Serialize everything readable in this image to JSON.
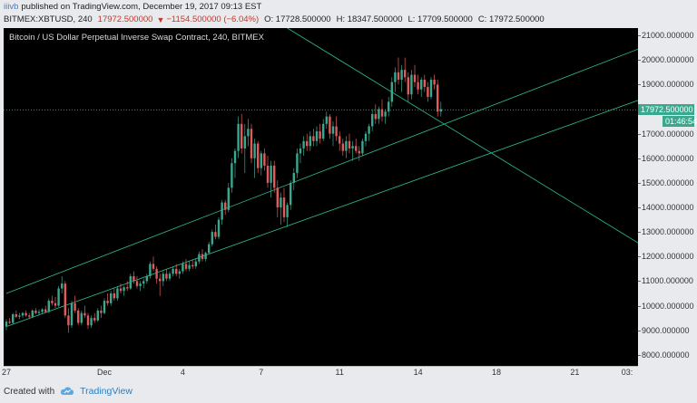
{
  "header": {
    "user": "iiivb",
    "published": "published on TradingView.com, December 19, 2017 09:13 EST"
  },
  "ohlc": {
    "symbol": "BITMEX:XBTUSD, 240",
    "last": "17972.500000",
    "change_arrow": "▼",
    "change": "−1154.500000 (−6.04%)",
    "o": "O: 17728.500000",
    "h": "H: 18347.500000",
    "l": "L: 17709.500000",
    "c": "C: 17972.500000"
  },
  "footer": {
    "created_with": "Created with",
    "brand": "TradingView"
  },
  "colors": {
    "up": "#3aa88e",
    "down": "#e05c5c",
    "channel": "#2cbf96",
    "background": "#000000"
  },
  "chart_data": {
    "type": "candlestick",
    "title": "Bitcoin / US Dollar Perpetual Inverse Swap Contract, 240, BITMEX",
    "ylim": [
      7550,
      21300
    ],
    "y_ticks": [
      "21000.000000",
      "20000.000000",
      "19000.000000",
      "18000.000000",
      "17000.000000",
      "16000.000000",
      "15000.000000",
      "14000.000000",
      "13000.000000",
      "12000.000000",
      "11000.000000",
      "10000.000000",
      "9000.000000",
      "8000.000000"
    ],
    "y_tick_values": [
      21000,
      20000,
      19000,
      18000,
      17000,
      16000,
      15000,
      14000,
      13000,
      12000,
      11000,
      10000,
      9000,
      8000
    ],
    "x_ticks": [
      "27",
      "Dec",
      "4",
      "7",
      "11",
      "14",
      "18",
      "21",
      "03:"
    ],
    "x_tick_bars": [
      0,
      30,
      54,
      78,
      102,
      126,
      150,
      174,
      190
    ],
    "last_price_label": "17972.500000",
    "countdown_label": "01:46:54",
    "last_price": 17972.5,
    "channel_lines": [
      {
        "name": "",
        "from_bar": 0,
        "from_price": 10500,
        "to_bar": 210,
        "to_price": 21300
      },
      {
        "name": "",
        "from_bar": 0,
        "from_price": 9150,
        "to_bar": 210,
        "to_price": 19150
      },
      {
        "name": "",
        "from_bar": 86,
        "from_price": 21300,
        "to_bar": 210,
        "to_price": 11200
      }
    ],
    "candles": [
      [
        9150,
        9450,
        9000,
        9350
      ],
      [
        9350,
        9500,
        9250,
        9300
      ],
      [
        9300,
        9700,
        9250,
        9650
      ],
      [
        9650,
        9800,
        9500,
        9550
      ],
      [
        9550,
        9700,
        9450,
        9600
      ],
      [
        9600,
        9750,
        9500,
        9700
      ],
      [
        9700,
        9800,
        9550,
        9600
      ],
      [
        9600,
        9700,
        9450,
        9550
      ],
      [
        9550,
        9850,
        9500,
        9800
      ],
      [
        9800,
        9900,
        9650,
        9700
      ],
      [
        9700,
        9850,
        9600,
        9750
      ],
      [
        9750,
        9900,
        9650,
        9850
      ],
      [
        9850,
        10000,
        9700,
        9750
      ],
      [
        9750,
        10300,
        9700,
        10200
      ],
      [
        10200,
        10400,
        10000,
        10100
      ],
      [
        10100,
        10350,
        9900,
        10000
      ],
      [
        10000,
        10800,
        9950,
        10700
      ],
      [
        10700,
        11200,
        10500,
        10900
      ],
      [
        10900,
        11000,
        9500,
        9600
      ],
      [
        9600,
        9900,
        8900,
        9200
      ],
      [
        9200,
        10200,
        9100,
        10100
      ],
      [
        10100,
        10400,
        9700,
        9800
      ],
      [
        9800,
        9900,
        9200,
        9300
      ],
      [
        9300,
        9800,
        9200,
        9700
      ],
      [
        9700,
        10000,
        9500,
        9600
      ],
      [
        9600,
        9700,
        9050,
        9200
      ],
      [
        9200,
        9600,
        9100,
        9500
      ],
      [
        9500,
        9700,
        9300,
        9400
      ],
      [
        9400,
        9900,
        9350,
        9800
      ],
      [
        9800,
        10000,
        9500,
        9700
      ],
      [
        9700,
        10300,
        9650,
        10200
      ],
      [
        10200,
        10500,
        10000,
        10100
      ],
      [
        10100,
        10600,
        10000,
        10500
      ],
      [
        10500,
        10700,
        10200,
        10300
      ],
      [
        10300,
        10800,
        10200,
        10700
      ],
      [
        10700,
        10900,
        10500,
        10600
      ],
      [
        10600,
        10800,
        10400,
        10750
      ],
      [
        10750,
        11000,
        10600,
        10700
      ],
      [
        10700,
        11300,
        10650,
        11200
      ],
      [
        11200,
        11400,
        10900,
        11000
      ],
      [
        11000,
        11200,
        10700,
        10800
      ],
      [
        10800,
        11000,
        10600,
        10900
      ],
      [
        10900,
        11100,
        10700,
        11000
      ],
      [
        11000,
        11300,
        10900,
        11200
      ],
      [
        11200,
        11800,
        11100,
        11700
      ],
      [
        11700,
        12000,
        11400,
        11500
      ],
      [
        11500,
        11600,
        10900,
        11100
      ],
      [
        11100,
        11300,
        10400,
        11000
      ],
      [
        11000,
        11400,
        10800,
        11300
      ],
      [
        11300,
        11500,
        11000,
        11100
      ],
      [
        11100,
        11400,
        11000,
        11300
      ],
      [
        11300,
        11600,
        11200,
        11500
      ],
      [
        11500,
        11700,
        11200,
        11300
      ],
      [
        11300,
        11500,
        11100,
        11400
      ],
      [
        11400,
        11800,
        11300,
        11700
      ],
      [
        11700,
        11900,
        11400,
        11500
      ],
      [
        11500,
        11800,
        11400,
        11650
      ],
      [
        11650,
        11850,
        11500,
        11600
      ],
      [
        11600,
        11900,
        11500,
        11800
      ],
      [
        11800,
        12200,
        11700,
        12100
      ],
      [
        12100,
        12300,
        11800,
        11900
      ],
      [
        11900,
        12200,
        11800,
        12150
      ],
      [
        12150,
        12600,
        12100,
        12500
      ],
      [
        12500,
        13100,
        12400,
        13000
      ],
      [
        13000,
        13300,
        12700,
        12800
      ],
      [
        12800,
        13600,
        12700,
        13500
      ],
      [
        13500,
        14300,
        13300,
        14200
      ],
      [
        14200,
        14300,
        13700,
        13900
      ],
      [
        13900,
        15000,
        13800,
        14800
      ],
      [
        14800,
        16000,
        14600,
        15800
      ],
      [
        15800,
        16400,
        15200,
        16300
      ],
      [
        16300,
        17700,
        16000,
        17400
      ],
      [
        17400,
        17800,
        16200,
        16400
      ],
      [
        16400,
        17400,
        15400,
        16900
      ],
      [
        16900,
        17600,
        16500,
        17200
      ],
      [
        17200,
        17400,
        15800,
        16000
      ],
      [
        16000,
        16800,
        15200,
        16600
      ],
      [
        16600,
        16700,
        15400,
        15600
      ],
      [
        15600,
        16300,
        15300,
        16200
      ],
      [
        16200,
        16400,
        15500,
        15700
      ],
      [
        15700,
        16100,
        14800,
        15000
      ],
      [
        15000,
        15900,
        14400,
        15700
      ],
      [
        15700,
        15900,
        14600,
        14800
      ],
      [
        14800,
        15100,
        13600,
        14000
      ],
      [
        14000,
        14600,
        13300,
        14400
      ],
      [
        14400,
        14800,
        13400,
        13600
      ],
      [
        13600,
        14200,
        13200,
        14100
      ],
      [
        14100,
        15100,
        13900,
        15000
      ],
      [
        15000,
        15600,
        14700,
        15400
      ],
      [
        15400,
        16400,
        15200,
        16200
      ],
      [
        16200,
        16600,
        15800,
        16400
      ],
      [
        16400,
        16900,
        16100,
        16700
      ],
      [
        16700,
        17000,
        16300,
        16500
      ],
      [
        16500,
        17100,
        16300,
        16900
      ],
      [
        16900,
        17200,
        16500,
        16700
      ],
      [
        16700,
        17300,
        16500,
        17100
      ],
      [
        17100,
        17400,
        16600,
        16800
      ],
      [
        16800,
        17600,
        16700,
        17400
      ],
      [
        17400,
        17900,
        17200,
        17700
      ],
      [
        17700,
        17800,
        16800,
        17000
      ],
      [
        17000,
        17500,
        16500,
        17300
      ],
      [
        17300,
        17700,
        16700,
        16900
      ],
      [
        16900,
        17100,
        16300,
        16600
      ],
      [
        16600,
        16800,
        16100,
        16300
      ],
      [
        16300,
        16900,
        16000,
        16700
      ],
      [
        16700,
        17000,
        16200,
        16400
      ],
      [
        16400,
        16700,
        15900,
        16500
      ],
      [
        16500,
        16800,
        16200,
        16300
      ],
      [
        16300,
        16500,
        15900,
        16200
      ],
      [
        16200,
        16800,
        16100,
        16700
      ],
      [
        16700,
        17100,
        16500,
        17000
      ],
      [
        17000,
        17400,
        16700,
        17300
      ],
      [
        17300,
        18000,
        17100,
        17800
      ],
      [
        17800,
        18200,
        17400,
        17600
      ],
      [
        17600,
        18100,
        17400,
        18000
      ],
      [
        18000,
        18400,
        17500,
        17700
      ],
      [
        17700,
        18000,
        17400,
        17900
      ],
      [
        17900,
        18500,
        17700,
        18300
      ],
      [
        18300,
        19300,
        18100,
        19100
      ],
      [
        19100,
        19700,
        18700,
        19500
      ],
      [
        19500,
        20100,
        19000,
        19200
      ],
      [
        19200,
        19800,
        18700,
        19600
      ],
      [
        19600,
        20100,
        19100,
        19300
      ],
      [
        19300,
        19500,
        18300,
        18600
      ],
      [
        18600,
        19600,
        18400,
        19400
      ],
      [
        19400,
        19800,
        18900,
        19100
      ],
      [
        19100,
        19400,
        18600,
        18800
      ],
      [
        18800,
        19300,
        18500,
        19200
      ],
      [
        19200,
        19400,
        18700,
        18900
      ],
      [
        18900,
        19100,
        18300,
        18500
      ],
      [
        18500,
        19300,
        18400,
        19200
      ],
      [
        19200,
        19400,
        18800,
        19000
      ],
      [
        19000,
        19200,
        17700,
        17900
      ],
      [
        17900,
        18300,
        17700,
        18000
      ]
    ]
  }
}
